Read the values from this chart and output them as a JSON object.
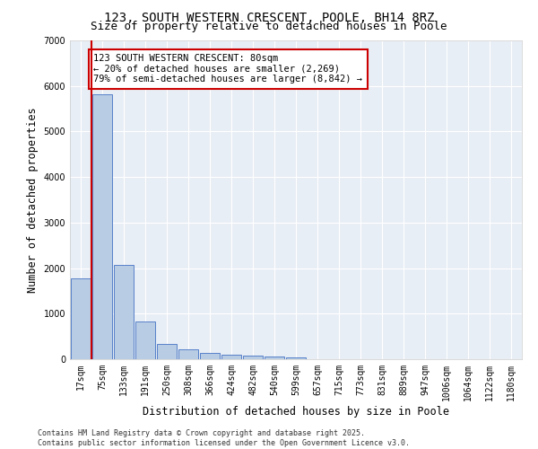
{
  "title_line1": "123, SOUTH WESTERN CRESCENT, POOLE, BH14 8RZ",
  "title_line2": "Size of property relative to detached houses in Poole",
  "xlabel": "Distribution of detached houses by size in Poole",
  "ylabel": "Number of detached properties",
  "categories": [
    "17sqm",
    "75sqm",
    "133sqm",
    "191sqm",
    "250sqm",
    "308sqm",
    "366sqm",
    "424sqm",
    "482sqm",
    "540sqm",
    "599sqm",
    "657sqm",
    "715sqm",
    "773sqm",
    "831sqm",
    "889sqm",
    "947sqm",
    "1006sqm",
    "1064sqm",
    "1122sqm",
    "1180sqm"
  ],
  "values": [
    1780,
    5820,
    2080,
    820,
    340,
    210,
    130,
    95,
    75,
    55,
    40,
    0,
    0,
    0,
    0,
    0,
    0,
    0,
    0,
    0,
    0
  ],
  "bar_color": "#b8cce4",
  "bar_edge_color": "#4472c4",
  "highlight_line_color": "#cc0000",
  "annotation_text": "123 SOUTH WESTERN CRESCENT: 80sqm\n← 20% of detached houses are smaller (2,269)\n79% of semi-detached houses are larger (8,842) →",
  "annotation_box_color": "#ffffff",
  "annotation_box_edge_color": "#cc0000",
  "ylim": [
    0,
    7000
  ],
  "yticks": [
    0,
    1000,
    2000,
    3000,
    4000,
    5000,
    6000,
    7000
  ],
  "bg_color": "#e8eef5",
  "grid_color": "#ffffff",
  "footer_text": "Contains HM Land Registry data © Crown copyright and database right 2025.\nContains public sector information licensed under the Open Government Licence v3.0.",
  "title_fontsize": 10,
  "subtitle_fontsize": 9,
  "axis_label_fontsize": 8.5,
  "tick_fontsize": 7,
  "annotation_fontsize": 7.5,
  "footer_fontsize": 6
}
